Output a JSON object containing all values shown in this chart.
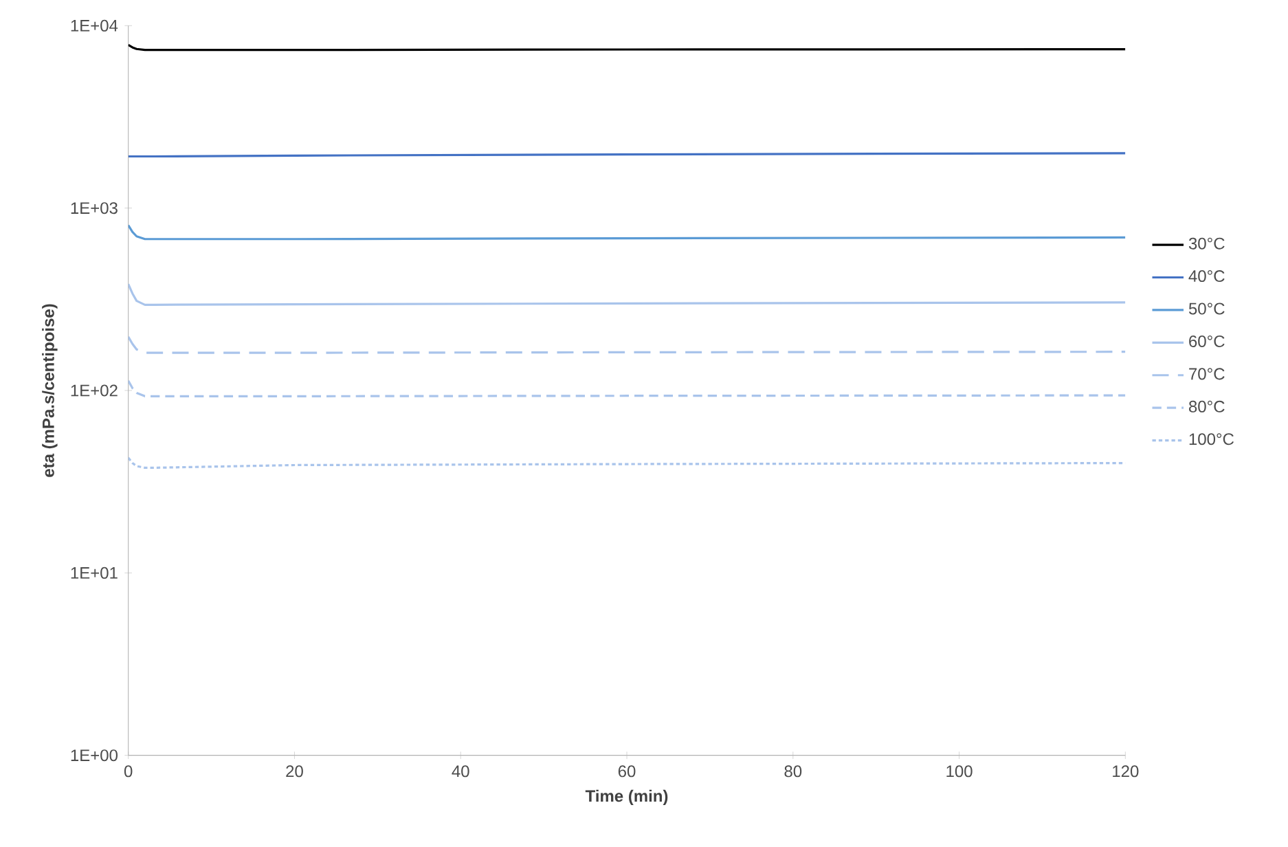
{
  "chart_data": {
    "type": "line",
    "xlabel": "Time (min)",
    "ylabel": "eta (mPa.s/centipoise)",
    "log": "y",
    "xlim": [
      0,
      120
    ],
    "xticks": [
      0,
      20,
      40,
      60,
      80,
      100,
      120
    ],
    "ylim": [
      1,
      10000
    ],
    "yticks": [
      {
        "value": 1,
        "label": "1E+00"
      },
      {
        "value": 10,
        "label": "1E+01"
      },
      {
        "value": 100,
        "label": "1E+02"
      },
      {
        "value": 1000,
        "label": "1E+03"
      },
      {
        "value": 10000,
        "label": "1E+04"
      }
    ],
    "grid": false,
    "legend": "right",
    "marker": "none",
    "x": [
      0,
      0.5,
      1,
      2,
      3,
      20,
      60,
      120
    ],
    "series": [
      {
        "name": "30°C",
        "color": "#000000",
        "line_style": "solid",
        "values": [
          7840,
          7600,
          7450,
          7360,
          7360,
          7360,
          7400,
          7430
        ]
      },
      {
        "name": "40°C",
        "color": "#4472c4",
        "line_style": "solid",
        "values": [
          1920,
          1920,
          1920,
          1920,
          1920,
          1940,
          1970,
          2000
        ]
      },
      {
        "name": "50°C",
        "color": "#5b9bd5",
        "line_style": "solid",
        "values": [
          805,
          740,
          700,
          676,
          676,
          676,
          683,
          690
        ]
      },
      {
        "name": "60°C",
        "color": "#a9c4eb",
        "line_style": "solid",
        "values": [
          383,
          340,
          310,
          295,
          295,
          297,
          300,
          304
        ]
      },
      {
        "name": "70°C",
        "color": "#a9c4eb",
        "line_style": "dashed",
        "values": [
          197,
          180,
          168,
          161,
          161,
          161,
          162,
          163
        ]
      },
      {
        "name": "80°C",
        "color": "#a9c4eb",
        "line_style": "densely dashed",
        "values": [
          113,
          103,
          97,
          93,
          93,
          93,
          93.5,
          94
        ]
      },
      {
        "name": "100°C",
        "color": "#a9c4eb",
        "line_style": "dotted",
        "values": [
          42.8,
          40,
          38.5,
          37.7,
          37.7,
          39,
          39.5,
          40
        ]
      }
    ]
  }
}
